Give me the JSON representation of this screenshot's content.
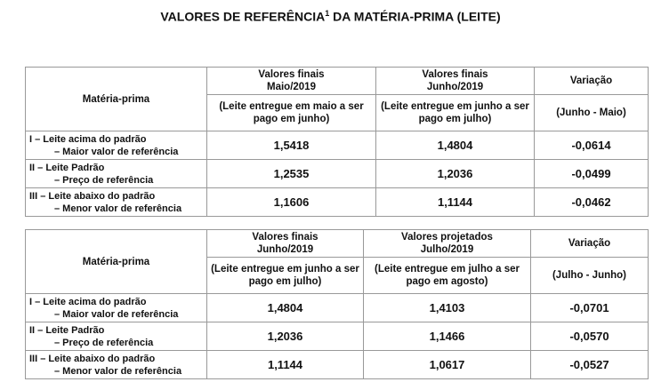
{
  "title": {
    "text": "VALORES DE REFERÊNCIA",
    "sup": "1",
    "rest": " DA MATÉRIA-PRIMA (LEITE)"
  },
  "tables": [
    {
      "row_header": "Matéria-prima",
      "columns": [
        {
          "title": "Valores finais",
          "period": "Maio/2019",
          "note": "(Leite entregue em maio a ser pago em junho)"
        },
        {
          "title": "Valores finais",
          "period": "Junho/2019",
          "note": "(Leite entregue em junho a ser pago em julho)"
        }
      ],
      "variation": {
        "title": "Variação",
        "note": "(Junho - Maio)"
      },
      "rows": [
        {
          "name": "I – Leite acima do padrão",
          "sub": "– Maior valor de referência",
          "values": [
            "1,5418",
            "1,4804"
          ],
          "variation": "-0,0614"
        },
        {
          "name": "II – Leite Padrão",
          "sub": "– Preço de referência",
          "values": [
            "1,2535",
            "1,2036"
          ],
          "variation": "-0,0499"
        },
        {
          "name": "III – Leite abaixo do padrão",
          "sub": "– Menor valor de referência",
          "values": [
            "1,1606",
            "1,1144"
          ],
          "variation": "-0,0462"
        }
      ]
    },
    {
      "row_header": "Matéria-prima",
      "columns": [
        {
          "title": "Valores finais",
          "period": "Junho/2019",
          "note": "(Leite entregue em junho a ser pago em julho)"
        },
        {
          "title": "Valores projetados",
          "period": "Julho/2019",
          "note": "(Leite entregue em julho a ser pago em agosto)"
        }
      ],
      "variation": {
        "title": "Variação",
        "note": "(Julho - Junho)"
      },
      "rows": [
        {
          "name": "I – Leite acima do padrão",
          "sub": "– Maior valor de referência",
          "values": [
            "1,4804",
            "1,4103"
          ],
          "variation": "-0,0701"
        },
        {
          "name": "II – Leite Padrão",
          "sub": "– Preço de referência",
          "values": [
            "1,2036",
            "1,1466"
          ],
          "variation": "-0,0570"
        },
        {
          "name": "III – Leite abaixo do padrão",
          "sub": "– Menor valor de referência",
          "values": [
            "1,1144",
            "1,0617"
          ],
          "variation": "-0,0527"
        }
      ]
    }
  ]
}
